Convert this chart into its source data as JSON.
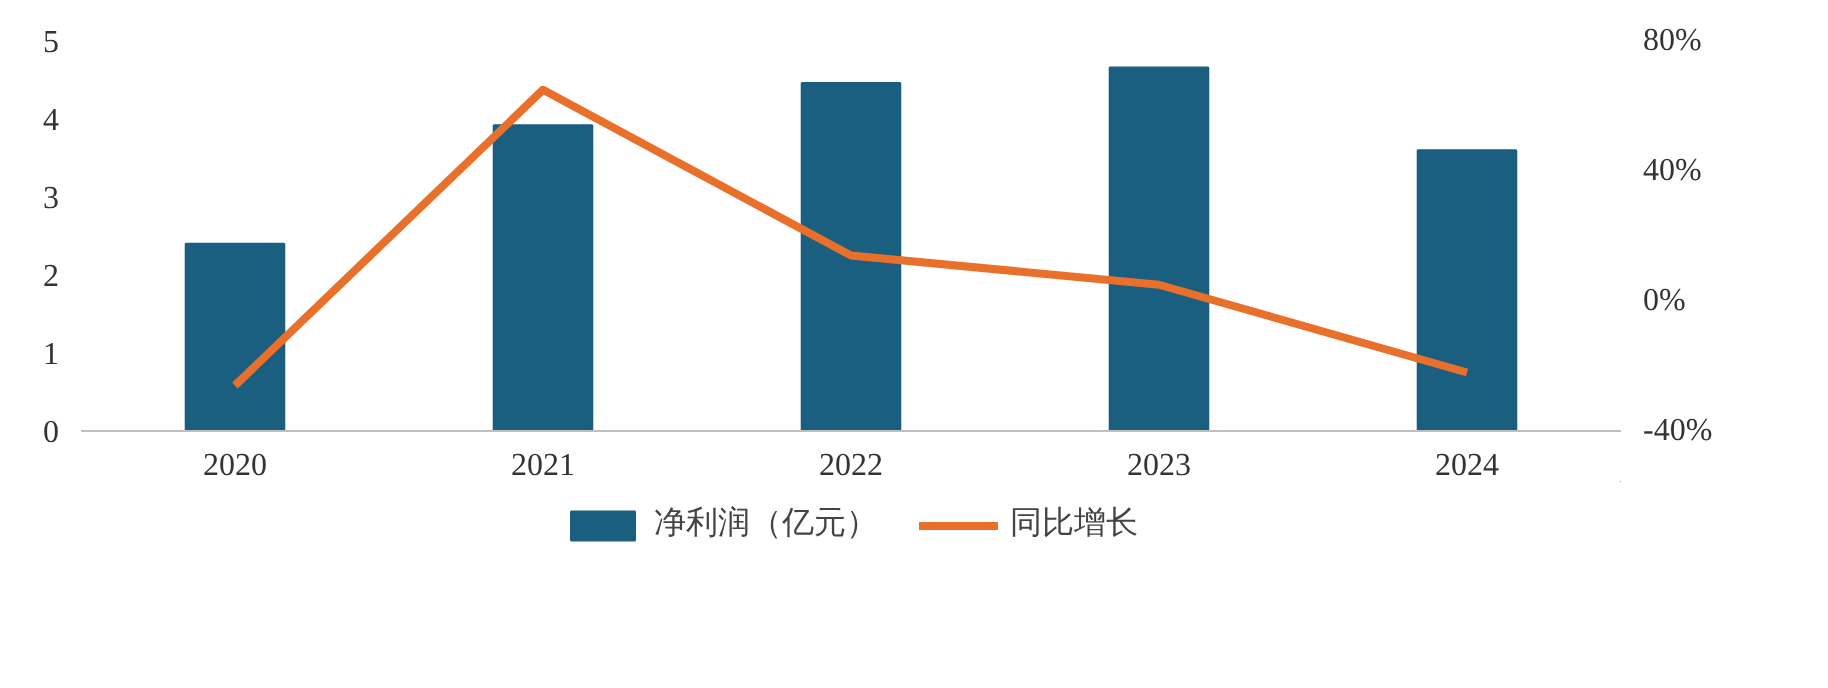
{
  "chart_data": {
    "type": "bar",
    "categories": [
      "2020",
      "2021",
      "2022",
      "2023",
      "2024"
    ],
    "series": [
      {
        "name": "净利润（亿元）",
        "color": "#1a5e80",
        "values": [
          2.4,
          3.92,
          4.46,
          4.66,
          3.6
        ]
      },
      {
        "name": "同比增长",
        "type": "line",
        "axis": "y2",
        "color": "#e8702a",
        "values": [
          -26,
          65,
          14,
          5,
          -22
        ]
      }
    ],
    "ylim": [
      0,
      5
    ],
    "yticks": [
      0,
      1,
      2,
      3,
      4,
      5
    ],
    "y2lim": [
      -40,
      80
    ],
    "y2ticks": [
      {
        "value": -40,
        "label": "-40%"
      },
      {
        "value": 0,
        "label": "0%"
      },
      {
        "value": 40,
        "label": "40%"
      },
      {
        "value": 80,
        "label": "80%"
      }
    ],
    "grid": false,
    "legend": "bottom",
    "marker": "none",
    "line_style": "solid"
  }
}
